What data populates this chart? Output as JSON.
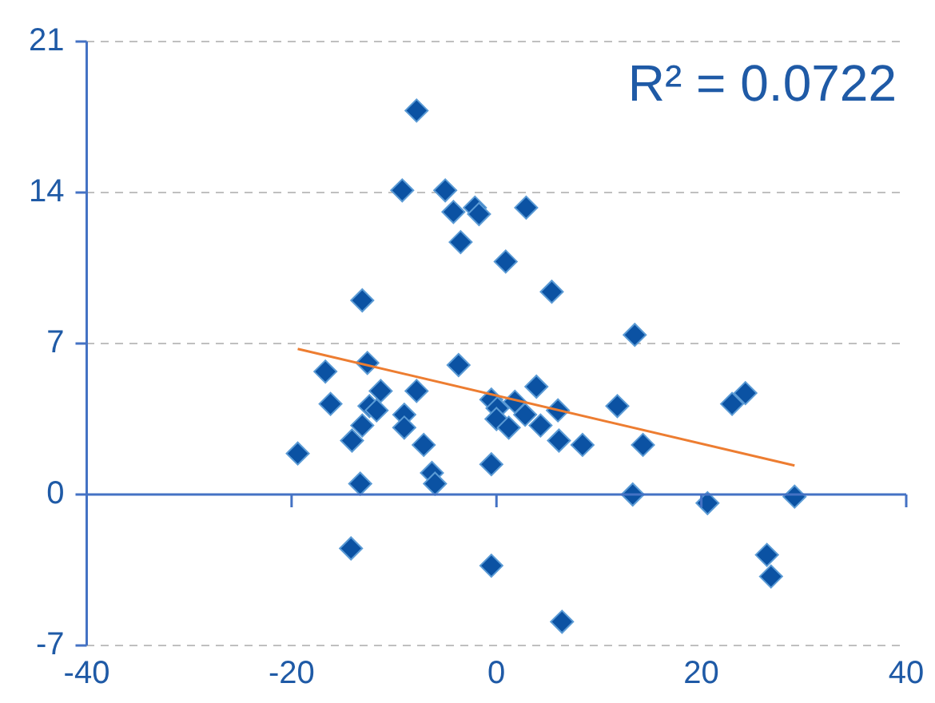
{
  "chart_data": {
    "type": "scatter",
    "grid": "y",
    "legend": false,
    "ref_lines": [
      {
        "axis": "y",
        "value": 0,
        "color": "#4472c4"
      }
    ],
    "xlim": [
      -40,
      40
    ],
    "xticks": [
      -40,
      -20,
      0,
      20,
      40
    ],
    "ylim": [
      -7,
      21
    ],
    "yticks": [
      -7,
      0,
      7,
      14,
      21
    ],
    "annotations": [
      "R² = 0.0722"
    ],
    "series": [
      {
        "marker": "diamond",
        "color": "#0b52a3",
        "x": [
          -7.8,
          -9.2,
          -5.0,
          -4.2,
          -2.1,
          -1.7,
          2.9,
          -3.5,
          0.9,
          5.4,
          -13.1,
          -19.4,
          -16.7,
          -16.2,
          -12.6,
          -11.3,
          -12.4,
          -11.7,
          -13.1,
          -14.1,
          -13.3,
          -14.2,
          -9.0,
          -9.0,
          -7.8,
          -7.1,
          -6.3,
          -6.0,
          -3.7,
          -0.5,
          0.1,
          0.0,
          1.2,
          1.8,
          2.8,
          3.9,
          4.3,
          6.0,
          6.1,
          8.4,
          -0.5,
          -0.5,
          6.4,
          11.8,
          13.5,
          14.3,
          13.3,
          20.6,
          23.0,
          24.3,
          29.1,
          26.4,
          26.8
        ],
        "values": [
          17.8,
          14.1,
          14.1,
          13.1,
          13.3,
          13.0,
          13.3,
          11.7,
          10.8,
          9.4,
          9.0,
          1.9,
          5.7,
          4.2,
          6.1,
          4.8,
          4.1,
          3.9,
          3.2,
          2.5,
          0.5,
          -2.5,
          3.7,
          3.1,
          4.8,
          2.3,
          1.0,
          0.5,
          6.0,
          4.4,
          4.0,
          3.5,
          3.1,
          4.3,
          3.7,
          5.0,
          3.2,
          3.9,
          2.5,
          2.3,
          1.4,
          -3.3,
          -5.9,
          4.1,
          7.4,
          2.3,
          0.0,
          -0.4,
          4.2,
          4.7,
          -0.1,
          -2.8,
          -3.8
        ]
      },
      {
        "type": "line",
        "color": "#ed7d31",
        "x": [
          -19.4,
          29.1
        ],
        "values": [
          6.75,
          1.34
        ]
      }
    ]
  }
}
